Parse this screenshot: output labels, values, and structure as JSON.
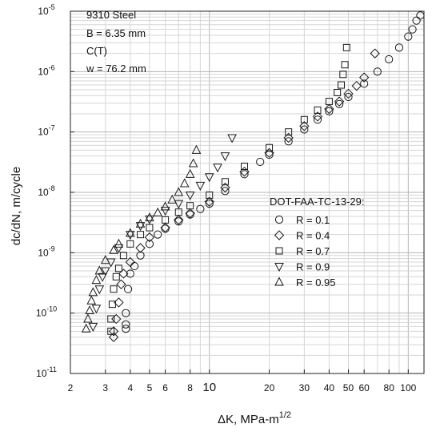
{
  "chart_data": {
    "type": "scatter",
    "xscale": "log",
    "yscale": "log",
    "xlim": [
      2,
      120
    ],
    "ylim": [
      1e-11,
      1e-05
    ],
    "grid": true,
    "xlabel": "ΔK, MPa-m",
    "xlabel_sup": "1/2",
    "ylabel": "dc/dN, m/cycle",
    "x_ticks": [
      {
        "v": 2,
        "label": "2"
      },
      {
        "v": 3,
        "label": "3"
      },
      {
        "v": 4,
        "label": "4"
      },
      {
        "v": 5,
        "label": "5"
      },
      {
        "v": 6,
        "label": "6"
      },
      {
        "v": 8,
        "label": "8"
      },
      {
        "v": 10,
        "label": "10"
      },
      {
        "v": 20,
        "label": "20"
      },
      {
        "v": 30,
        "label": "30"
      },
      {
        "v": 40,
        "label": "40"
      },
      {
        "v": 50,
        "label": "50"
      },
      {
        "v": 60,
        "label": "60"
      },
      {
        "v": 80,
        "label": "80"
      },
      {
        "v": 100,
        "label": "100"
      }
    ],
    "y_ticks": [
      {
        "v": 1e-11,
        "base": "10",
        "exp": "-11"
      },
      {
        "v": 1e-10,
        "base": "10",
        "exp": "-10"
      },
      {
        "v": 1e-09,
        "base": "10",
        "exp": "-9"
      },
      {
        "v": 1e-08,
        "base": "10",
        "exp": "-8"
      },
      {
        "v": 1e-07,
        "base": "10",
        "exp": "-7"
      },
      {
        "v": 1e-06,
        "base": "10",
        "exp": "-6"
      },
      {
        "v": 1e-05,
        "base": "10",
        "exp": "-5"
      }
    ],
    "info_lines": [
      "9310 Steel",
      "B = 6.35 mm",
      "C(T)",
      "w = 76.2 mm"
    ],
    "legend_title": "DOT-FAA-TC-13-29:",
    "legend_position": "right-middle",
    "series": [
      {
        "name": "R = 0.1",
        "marker": "circle",
        "x": [
          3.8,
          3.8,
          3.8,
          3.9,
          4.0,
          4.2,
          4.5,
          5.0,
          5.5,
          6.0,
          7.0,
          8.0,
          9.0,
          10.0,
          12.0,
          15.0,
          18.0,
          20.0,
          25.0,
          30.0,
          35.0,
          40.0,
          45.0,
          50.0,
          60.0,
          70.0,
          80.0,
          90.0,
          100.0,
          105.0,
          110.0,
          115.0
        ],
        "y": [
          5.5e-11,
          6.5e-11,
          1e-10,
          2.5e-10,
          4.5e-10,
          6e-10,
          9e-10,
          1.4e-09,
          2e-09,
          2.5e-09,
          3.3e-09,
          4.3e-09,
          5.3e-09,
          6.5e-09,
          1.05e-08,
          2e-08,
          3.2e-08,
          4.2e-08,
          7e-08,
          1.1e-07,
          1.6e-07,
          2.2e-07,
          2.9e-07,
          3.8e-07,
          6.3e-07,
          1e-06,
          1.6e-06,
          2.5e-06,
          3.8e-06,
          5e-06,
          7e-06,
          8.5e-06
        ]
      },
      {
        "name": "R = 0.4",
        "marker": "diamond",
        "x": [
          3.3,
          3.3,
          3.4,
          3.5,
          3.6,
          3.7,
          4.0,
          4.5,
          5.0,
          6.0,
          7.0,
          8.0,
          10.0,
          12.0,
          15.0,
          20.0,
          25.0,
          30.0,
          35.0,
          40.0,
          45.0,
          50.0,
          55.0,
          60.0,
          68.0
        ],
        "y": [
          4e-11,
          5e-11,
          8e-11,
          1.5e-10,
          3e-10,
          4.5e-10,
          7e-10,
          1.2e-09,
          1.8e-09,
          2.6e-09,
          3.5e-09,
          4.5e-09,
          7e-09,
          1.2e-08,
          2.2e-08,
          4.5e-08,
          8e-08,
          1.25e-07,
          1.8e-07,
          2.4e-07,
          3.2e-07,
          4.3e-07,
          5.8e-07,
          8e-07,
          2e-06
        ]
      },
      {
        "name": "R = 0.7",
        "marker": "square",
        "x": [
          3.2,
          3.2,
          3.25,
          3.3,
          3.4,
          3.5,
          3.7,
          4.0,
          4.5,
          5.0,
          6.0,
          7.0,
          8.0,
          10.0,
          12.0,
          15.0,
          20.0,
          25.0,
          30.0,
          35.0,
          40.0,
          44.0,
          46.0,
          47.0,
          48.0,
          49.0
        ],
        "y": [
          5e-11,
          8e-11,
          1.4e-10,
          2.5e-10,
          4e-10,
          5.5e-10,
          9e-10,
          1.4e-09,
          2e-09,
          2.6e-09,
          3.5e-09,
          4.7e-09,
          6e-09,
          9e-09,
          1.5e-08,
          2.7e-08,
          5.5e-08,
          1e-07,
          1.6e-07,
          2.3e-07,
          3.2e-07,
          4.5e-07,
          6e-07,
          9e-07,
          1.3e-06,
          2.5e-06
        ]
      },
      {
        "name": "R = 0.9",
        "marker": "triangle-down",
        "x": [
          2.6,
          2.7,
          2.8,
          2.9,
          3.0,
          3.2,
          3.5,
          4.0,
          4.5,
          5.0,
          6.0,
          7.0,
          8.0,
          9.0,
          10.0,
          11.0,
          12.0,
          13.0
        ],
        "y": [
          6e-11,
          1.2e-10,
          2.5e-10,
          4e-10,
          5e-10,
          7e-10,
          1.2e-09,
          2e-09,
          2.8e-09,
          3.6e-09,
          5e-09,
          6.5e-09,
          9e-09,
          1.3e-08,
          1.8e-08,
          2.6e-08,
          4e-08,
          8e-08
        ]
      },
      {
        "name": "R = 0.95",
        "marker": "triangle-up",
        "x": [
          2.4,
          2.45,
          2.5,
          2.55,
          2.6,
          2.7,
          2.8,
          3.0,
          3.3,
          3.5,
          4.0,
          4.5,
          5.0,
          5.5,
          6.0,
          6.5,
          7.0,
          7.5,
          8.0,
          8.3,
          8.6
        ],
        "y": [
          5.5e-11,
          8e-11,
          1.1e-10,
          1.6e-10,
          2.2e-10,
          3.5e-10,
          5e-10,
          7.5e-10,
          1.1e-09,
          1.4e-09,
          2.1e-09,
          3e-09,
          3.8e-09,
          4.6e-09,
          5.8e-09,
          7.5e-09,
          1e-08,
          1.4e-08,
          2e-08,
          3e-08,
          5e-08
        ]
      }
    ]
  }
}
